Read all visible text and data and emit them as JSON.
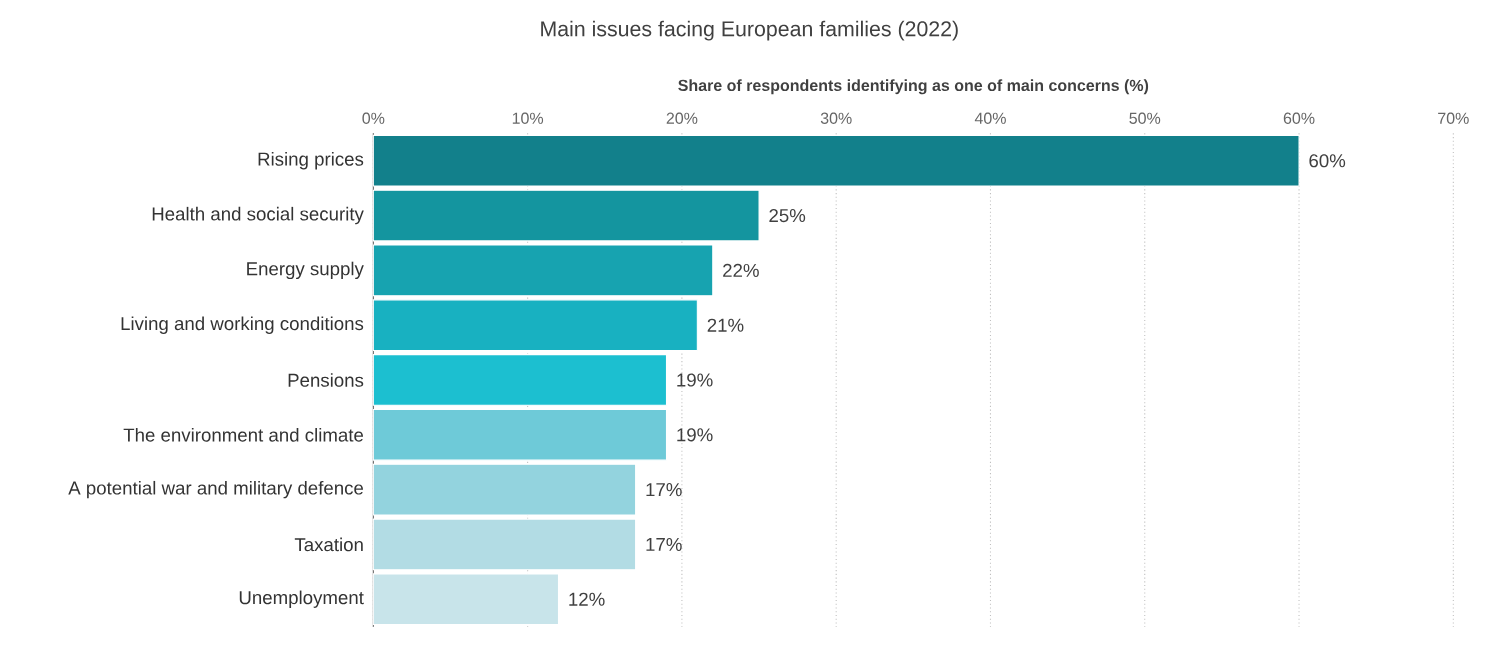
{
  "chart_data": {
    "type": "bar",
    "orientation": "horizontal",
    "title": "Main issues facing European families (2022)",
    "xlabel": "Share of respondents identifying as one of main concerns (%)",
    "categories": [
      "Rising prices",
      "Health and social security",
      "Energy supply",
      "Living and working conditions",
      "Pensions",
      "The environment and climate",
      "A potential war and military defence",
      "Taxation",
      "Unemployment"
    ],
    "values": [
      60,
      25,
      22,
      21,
      19,
      19,
      17,
      17,
      12
    ],
    "value_labels": [
      "60%",
      "25%",
      "22%",
      "21%",
      "19%",
      "19%",
      "17%",
      "17%",
      "12%"
    ],
    "colors": [
      "#12808b",
      "#14959f",
      "#17a3b0",
      "#18b1c1",
      "#1cbfd0",
      "#6ecad8",
      "#93d3de",
      "#b2dce4",
      "#c8e4ea"
    ],
    "xlim": [
      0,
      70
    ],
    "xticks": [
      {
        "value": 0,
        "label": "0%"
      },
      {
        "value": 10,
        "label": "10%"
      },
      {
        "value": 20,
        "label": "20%"
      },
      {
        "value": 30,
        "label": "30%"
      },
      {
        "value": 40,
        "label": "40%"
      },
      {
        "value": 50,
        "label": "50%"
      },
      {
        "value": 60,
        "label": "60%"
      },
      {
        "value": 70,
        "label": "70%"
      }
    ],
    "grid": "x"
  }
}
